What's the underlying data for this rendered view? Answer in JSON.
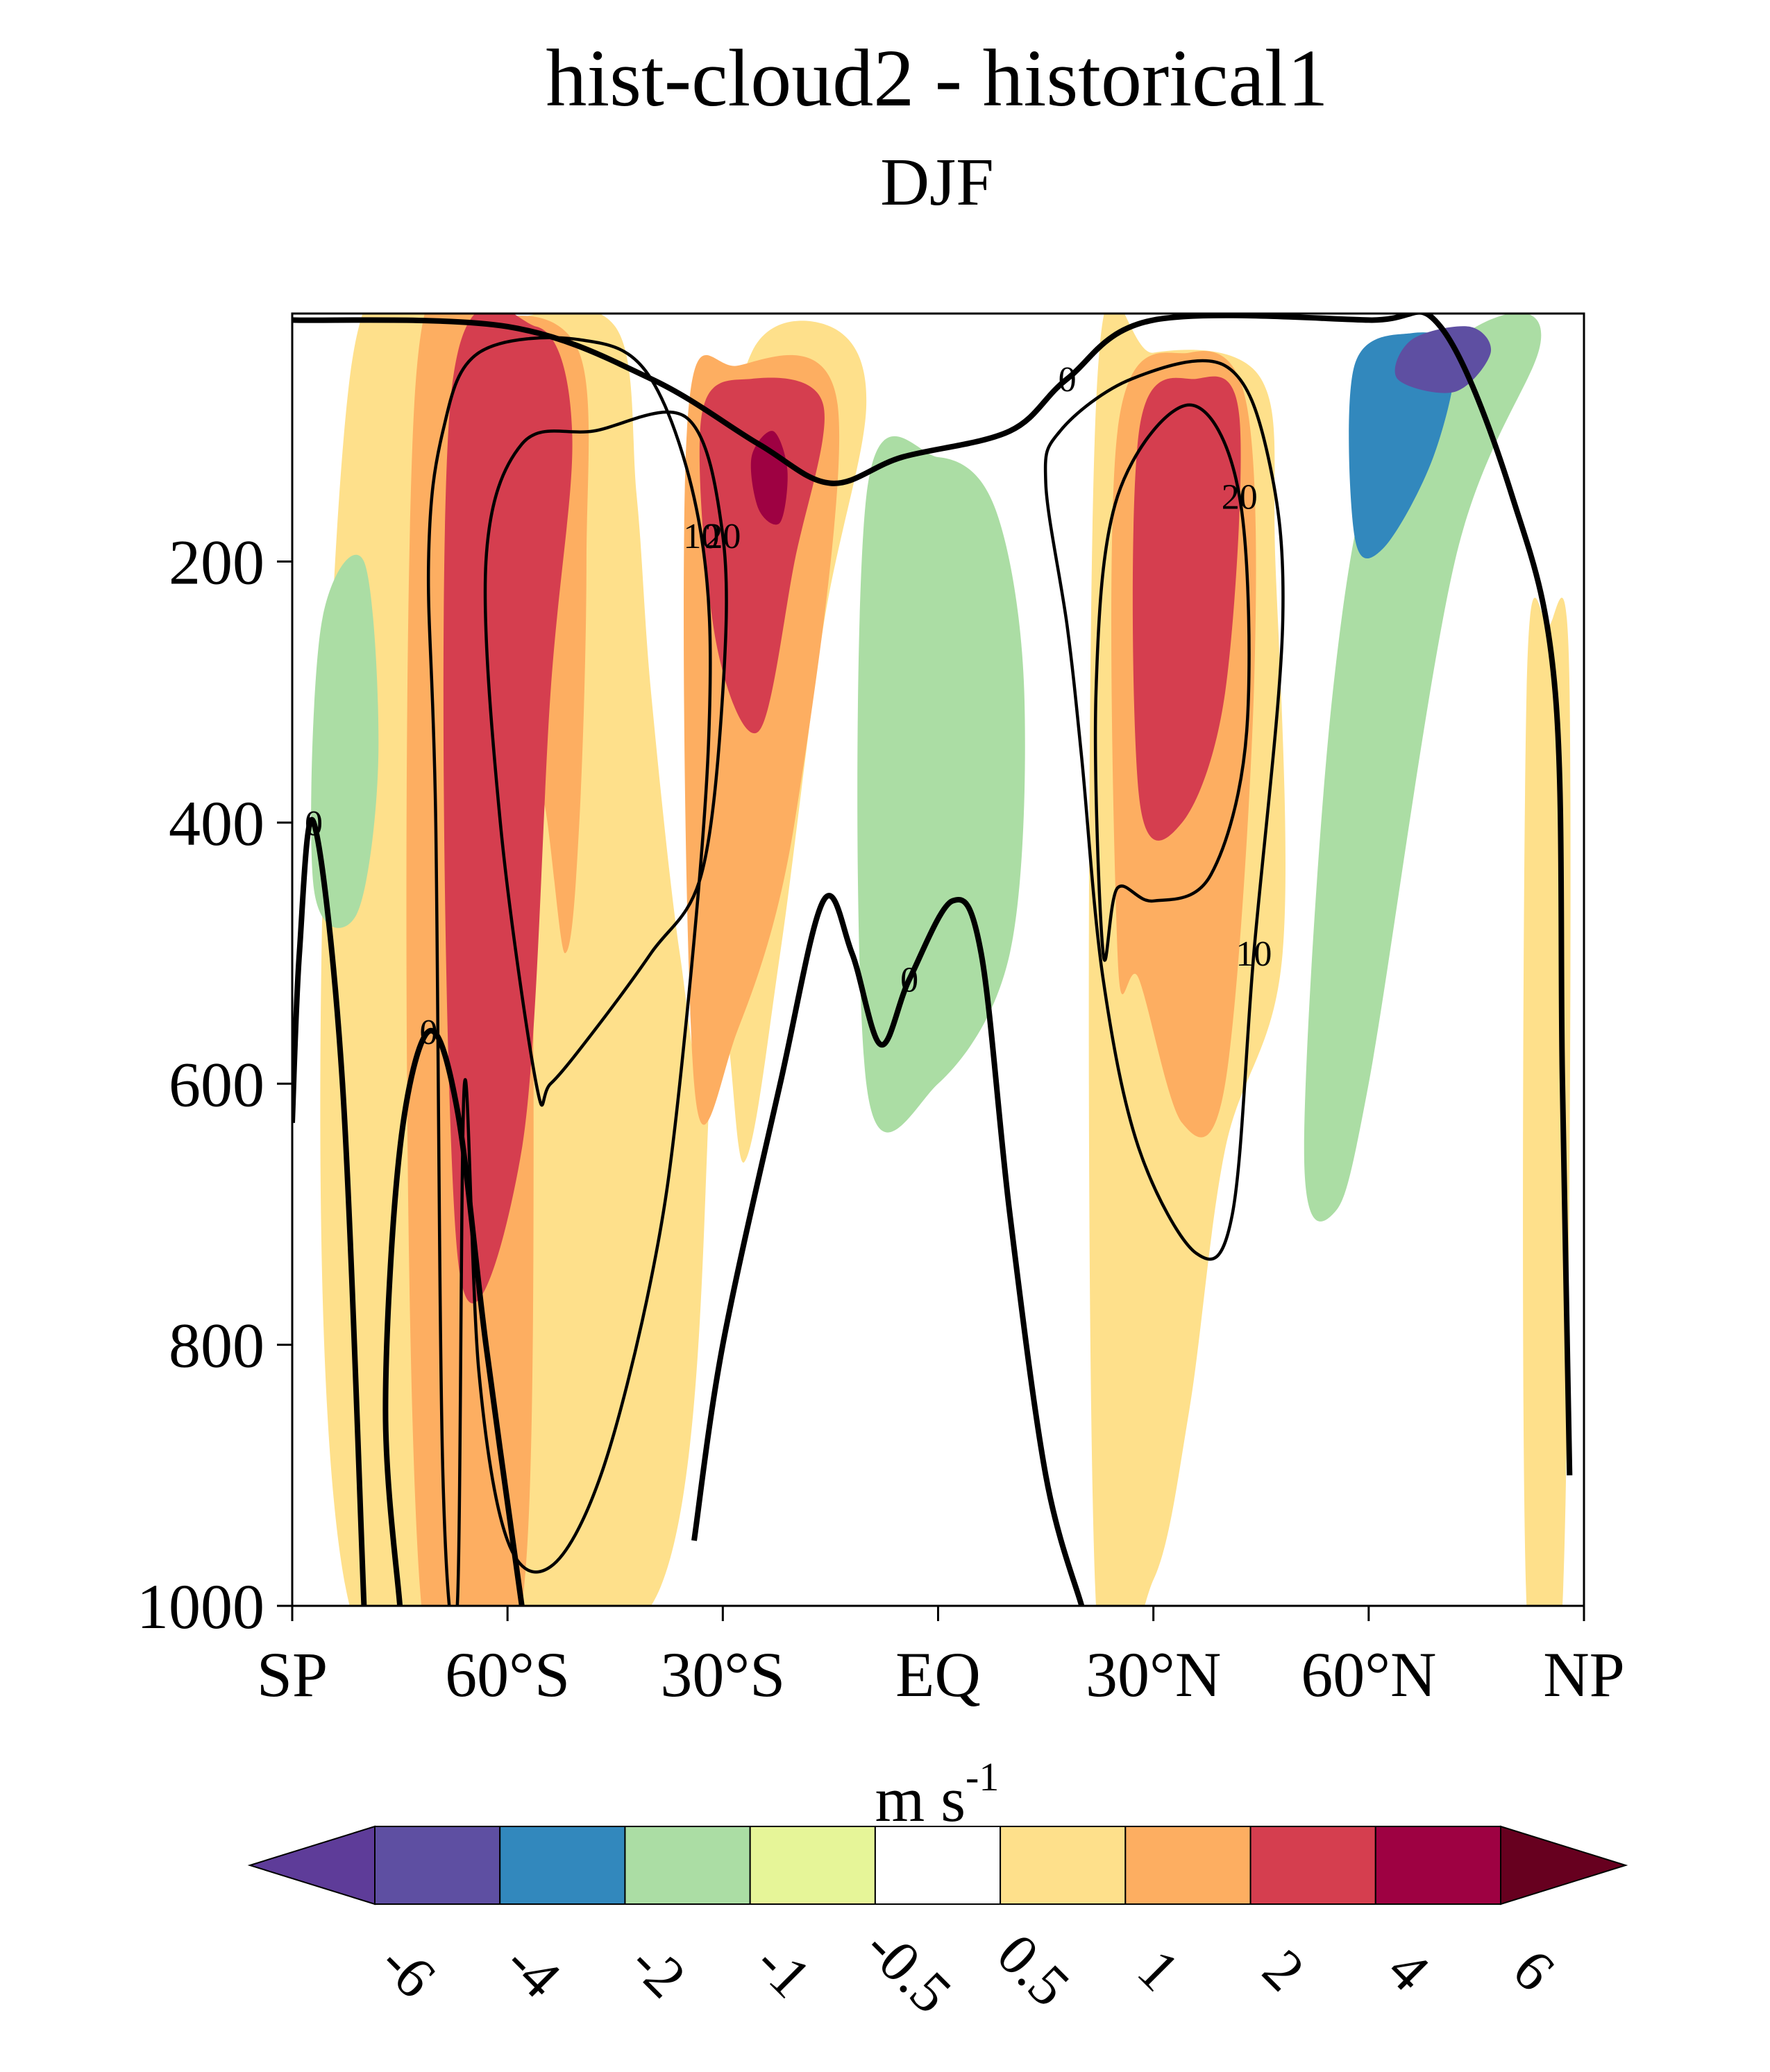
{
  "chart_data": {
    "type": "heatmap",
    "title": "hist-cloud2 - historical1",
    "subtitle": "DJF",
    "xticks": [
      {
        "lat": -90,
        "label": "SP"
      },
      {
        "lat": -60,
        "label": "60°S"
      },
      {
        "lat": -30,
        "label": "30°S"
      },
      {
        "lat": 0,
        "label": "EQ"
      },
      {
        "lat": 30,
        "label": "30°N"
      },
      {
        "lat": 60,
        "label": "60°N"
      },
      {
        "lat": 90,
        "label": "NP"
      }
    ],
    "yticks": [
      200,
      400,
      600,
      800,
      1000
    ],
    "xlim": [
      -90,
      90
    ],
    "ylim": [
      1000,
      10
    ],
    "colorbar": {
      "unit": "m s",
      "unit_exponent": "-1",
      "levels": [
        "-6",
        "-4",
        "-2",
        "-1",
        "-0.5",
        "0.5",
        "1",
        "2",
        "4",
        "6"
      ],
      "colors": [
        "#5e3c99",
        "#5e4fa2",
        "#3288bd",
        "#abdda4",
        "#e6f598",
        "#ffffff",
        "#fee08b",
        "#fdae61",
        "#d53e4f",
        "#9e0142",
        "#67001f"
      ]
    },
    "fill_regions": [
      {
        "level": 1,
        "lon_lat_p": [
          [
            -82,
            1000
          ],
          [
            -82,
            60
          ],
          [
            -60,
            15
          ],
          [
            -45,
            20
          ],
          [
            -42,
            150
          ],
          [
            -40,
            300
          ],
          [
            -36,
            500
          ],
          [
            -32,
            600
          ],
          [
            -30,
            200
          ],
          [
            -26,
            40
          ],
          [
            -15,
            20
          ],
          [
            -10,
            80
          ],
          [
            -16,
            250
          ],
          [
            -22,
            500
          ],
          [
            -27,
            660
          ],
          [
            -31,
            560
          ],
          [
            -40,
            1000
          ]
        ]
      },
      {
        "level": 2,
        "lon_lat_p": [
          [
            -72,
            1000
          ],
          [
            -73,
            80
          ],
          [
            -62,
            15
          ],
          [
            -50,
            40
          ],
          [
            -49,
            200
          ],
          [
            -50,
            400
          ],
          [
            -52,
            500
          ],
          [
            -56,
            400
          ],
          [
            -58,
            1000
          ]
        ]
      },
      {
        "level": 2,
        "lon_lat_p": [
          [
            -34,
            600
          ],
          [
            -35,
            100
          ],
          [
            -28,
            50
          ],
          [
            -14,
            80
          ],
          [
            -20,
            400
          ],
          [
            -28,
            560
          ]
        ]
      },
      {
        "level": 4,
        "lon_lat_p": [
          [
            -67,
            730
          ],
          [
            -68,
            80
          ],
          [
            -56,
            20
          ],
          [
            -51,
            100
          ],
          [
            -54,
            300
          ],
          [
            -58,
            650
          ]
        ]
      },
      {
        "level": 4,
        "lon_lat_p": [
          [
            -33,
            90
          ],
          [
            -26,
            60
          ],
          [
            -16,
            80
          ],
          [
            -20,
            200
          ],
          [
            -25,
            330
          ],
          [
            -31,
            260
          ]
        ]
      },
      {
        "level": 6,
        "lon_lat_p": [
          [
            -26,
            120
          ],
          [
            -23,
            100
          ],
          [
            -21,
            130
          ],
          [
            -22,
            170
          ],
          [
            -25,
            160
          ]
        ]
      },
      {
        "level": 1,
        "lon_lat_p": [
          [
            22,
            1000
          ],
          [
            22,
            80
          ],
          [
            30,
            40
          ],
          [
            45,
            60
          ],
          [
            47,
            200
          ],
          [
            48,
            500
          ],
          [
            40,
            650
          ],
          [
            35,
            850
          ],
          [
            30,
            980
          ]
        ]
      },
      {
        "level": 2,
        "lon_lat_p": [
          [
            25,
            500
          ],
          [
            25,
            100
          ],
          [
            35,
            40
          ],
          [
            43,
            80
          ],
          [
            44,
            300
          ],
          [
            40,
            600
          ],
          [
            34,
            630
          ],
          [
            28,
            520
          ]
        ]
      },
      {
        "level": 4,
        "lon_lat_p": [
          [
            28,
            380
          ],
          [
            28,
            100
          ],
          [
            36,
            60
          ],
          [
            42,
            90
          ],
          [
            40,
            300
          ],
          [
            34,
            400
          ]
        ]
      },
      {
        "level": -2,
        "lon_lat_p": [
          [
            -8,
            500
          ],
          [
            -8,
            180
          ],
          [
            -4,
            130
          ],
          [
            5,
            140
          ],
          [
            8,
            200
          ],
          [
            7,
            450
          ],
          [
            2,
            520
          ]
        ]
      },
      {
        "level": -1,
        "lon_lat_p": [
          [
            -10,
            600
          ],
          [
            -10,
            150
          ],
          [
            0,
            120
          ],
          [
            8,
            160
          ],
          [
            12,
            300
          ],
          [
            10,
            500
          ],
          [
            0,
            600
          ]
        ]
      },
      {
        "level": -1,
        "lon_lat_p": [
          [
            -87,
            450
          ],
          [
            -86,
            250
          ],
          [
            -80,
            200
          ],
          [
            -78,
            350
          ],
          [
            -81,
            470
          ]
        ]
      },
      {
        "level": -1,
        "lon_lat_p": [
          [
            51,
            650
          ],
          [
            55,
            300
          ],
          [
            62,
            100
          ],
          [
            75,
            20
          ],
          [
            84,
            30
          ],
          [
            72,
            200
          ],
          [
            60,
            600
          ],
          [
            55,
            700
          ]
        ]
      },
      {
        "level": -2,
        "lon_lat_p": [
          [
            58,
            180
          ],
          [
            58,
            50
          ],
          [
            66,
            25
          ],
          [
            72,
            40
          ],
          [
            69,
            120
          ],
          [
            62,
            190
          ]
        ]
      },
      {
        "level": -4,
        "lon_lat_p": [
          [
            64,
            60
          ],
          [
            66,
            30
          ],
          [
            74,
            20
          ],
          [
            77,
            40
          ],
          [
            72,
            70
          ]
        ]
      },
      {
        "level": 1,
        "lon_lat_p": [
          [
            82,
            1000
          ],
          [
            82,
            300
          ],
          [
            85,
            250
          ],
          [
            88,
            300
          ],
          [
            87,
            1000
          ]
        ]
      }
    ],
    "contours": [
      {
        "label": "10",
        "lon_lat_p": [
          [
            -67,
            1000
          ],
          [
            -69,
            900
          ],
          [
            -70,
            400
          ],
          [
            -71,
            200
          ],
          [
            -69,
            100
          ],
          [
            -64,
            40
          ],
          [
            -50,
            30
          ],
          [
            -40,
            60
          ],
          [
            -33,
            180
          ],
          [
            -32,
            340
          ],
          [
            -36,
            600
          ],
          [
            -40,
            750
          ],
          [
            -47,
            900
          ],
          [
            -54,
            970
          ],
          [
            -60,
            950
          ],
          [
            -64,
            820
          ],
          [
            -66,
            600
          ]
        ]
      },
      {
        "label": "20",
        "lon_lat_p": [
          [
            -56,
            600
          ],
          [
            -61,
            400
          ],
          [
            -63,
            200
          ],
          [
            -58,
            110
          ],
          [
            -48,
            100
          ],
          [
            -35,
            90
          ],
          [
            -30,
            180
          ],
          [
            -30,
            300
          ],
          [
            -33,
            440
          ],
          [
            -40,
            500
          ],
          [
            -48,
            560
          ],
          [
            -54,
            600
          ]
        ]
      },
      {
        "label": "10",
        "lon_lat_p": [
          [
            15,
            140
          ],
          [
            17,
            100
          ],
          [
            27,
            60
          ],
          [
            40,
            50
          ],
          [
            46,
            120
          ],
          [
            48,
            250
          ],
          [
            44,
            500
          ],
          [
            41,
            700
          ],
          [
            36,
            730
          ],
          [
            28,
            650
          ],
          [
            23,
            520
          ],
          [
            20,
            350
          ],
          [
            18,
            250
          ]
        ]
      },
      {
        "label": "20",
        "lon_lat_p": [
          [
            23,
            500
          ],
          [
            22,
            300
          ],
          [
            25,
            150
          ],
          [
            35,
            80
          ],
          [
            42,
            150
          ],
          [
            43,
            330
          ],
          [
            38,
            440
          ],
          [
            30,
            460
          ],
          [
            25,
            450
          ]
        ]
      },
      {
        "label": "0",
        "lon_lat_p": [
          [
            -90,
            630
          ],
          [
            -89,
            500
          ],
          [
            -87,
            400
          ],
          [
            -83,
            600
          ],
          [
            -80,
            1000
          ]
        ]
      },
      {
        "label": "0",
        "lon_lat_p": [
          [
            -75,
            1000
          ],
          [
            -77,
            850
          ],
          [
            -75,
            650
          ],
          [
            -71,
            560
          ],
          [
            -67,
            620
          ],
          [
            -63,
            800
          ],
          [
            -58,
            1000
          ]
        ]
      },
      {
        "label": "0",
        "lon_lat_p": [
          [
            -34,
            950
          ],
          [
            -30,
            800
          ],
          [
            -22,
            600
          ],
          [
            -16,
            460
          ],
          [
            -12,
            500
          ],
          [
            -8,
            570
          ],
          [
            -4,
            520
          ],
          [
            2,
            460
          ],
          [
            6,
            500
          ],
          [
            10,
            700
          ],
          [
            15,
            900
          ],
          [
            20,
            1000
          ]
        ]
      },
      {
        "label": "0",
        "lon_lat_p": [
          [
            -90,
            15
          ],
          [
            -60,
            20
          ],
          [
            -40,
            60
          ],
          [
            -25,
            110
          ],
          [
            -15,
            140
          ],
          [
            -5,
            120
          ],
          [
            10,
            100
          ],
          [
            18,
            60
          ],
          [
            30,
            15
          ],
          [
            60,
            15
          ],
          [
            70,
            20
          ],
          [
            80,
            150
          ],
          [
            86,
            300
          ],
          [
            87,
            600
          ],
          [
            88,
            900
          ]
        ]
      }
    ]
  }
}
